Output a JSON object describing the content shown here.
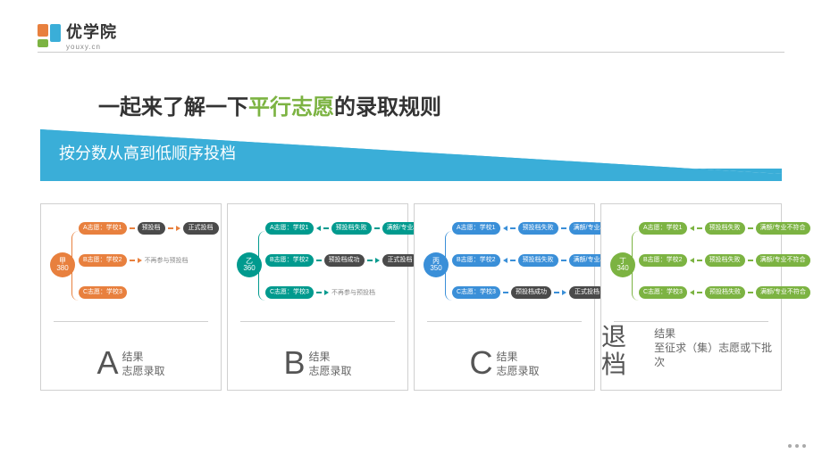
{
  "logo": {
    "cn": "优学院",
    "en": "youxy.cn"
  },
  "title": {
    "pre": "一起来了解一下",
    "highlight": "平行志愿",
    "post": "的录取规则"
  },
  "subtitle": "按分数从高到低顺序投档",
  "colors": {
    "orange": "#e8803e",
    "teal": "#009a8e",
    "blue": "#3a8fd8",
    "green": "#7cb342",
    "dark": "#4a4a4a",
    "subtitle_bar": "#3aaed8",
    "border": "#d0d0d0",
    "text": "#333",
    "muted": "#888"
  },
  "panels": [
    {
      "theme": "orange",
      "root": {
        "name": "甲",
        "score": "380"
      },
      "rows": [
        {
          "wish": "A志愿：学校1",
          "mid": "预投档",
          "mid_bg": "dark",
          "end": "正式投档",
          "end_bg": "dark",
          "arrow": "right"
        },
        {
          "wish": "B志愿：学校2",
          "note": "不再参与预投档",
          "arrow": "right"
        },
        {
          "wish": "C志愿：学校3",
          "arrow": "right"
        }
      ],
      "letter": "A",
      "result": "结果",
      "detail": "志愿录取"
    },
    {
      "theme": "teal",
      "root": {
        "name": "乙",
        "score": "360"
      },
      "rows": [
        {
          "wish": "A志愿：学校1",
          "mid": "预投档失败",
          "mid_bg": "teal",
          "end": "满额/专业/等级不符合",
          "end_bg": "teal",
          "arrow": "left"
        },
        {
          "wish": "B志愿：学校2",
          "mid": "预投档成功",
          "mid_bg": "dark",
          "end": "正式投档",
          "end_bg": "dark",
          "arrow": "right"
        },
        {
          "wish": "C志愿：学校3",
          "note": "不再参与预投档",
          "arrow": "right"
        }
      ],
      "letter": "B",
      "result": "结果",
      "detail": "志愿录取"
    },
    {
      "theme": "blue",
      "root": {
        "name": "丙",
        "score": "350"
      },
      "rows": [
        {
          "wish": "A志愿：学校1",
          "mid": "预投档失败",
          "mid_bg": "blue",
          "end": "满额/专业/等级不符合",
          "end_bg": "blue",
          "arrow": "left"
        },
        {
          "wish": "B志愿：学校2",
          "mid": "预投档失败",
          "mid_bg": "blue",
          "end": "满额/专业/等级不符合",
          "end_bg": "blue",
          "arrow": "left"
        },
        {
          "wish": "C志愿：学校3",
          "mid": "预投档成功",
          "mid_bg": "dark",
          "end": "正式投档",
          "end_bg": "dark",
          "arrow": "right"
        }
      ],
      "letter": "C",
      "result": "结果",
      "detail": "志愿录取"
    },
    {
      "theme": "green",
      "root": {
        "name": "丁",
        "score": "340"
      },
      "rows": [
        {
          "wish": "A志愿：学校1",
          "mid": "预投档失败",
          "mid_bg": "green",
          "end": "满额/专业不符合",
          "end_bg": "green",
          "arrow": "left"
        },
        {
          "wish": "B志愿：学校2",
          "mid": "预投档失败",
          "mid_bg": "green",
          "end": "满额/专业不符合",
          "end_bg": "green",
          "arrow": "left"
        },
        {
          "wish": "C志愿：学校3",
          "mid": "预投档失败",
          "mid_bg": "green",
          "end": "满额/专业不符合",
          "end_bg": "green",
          "arrow": "left"
        }
      ],
      "word": "退档",
      "result": "结果",
      "detail": "至征求（集）志愿或下批次"
    }
  ]
}
